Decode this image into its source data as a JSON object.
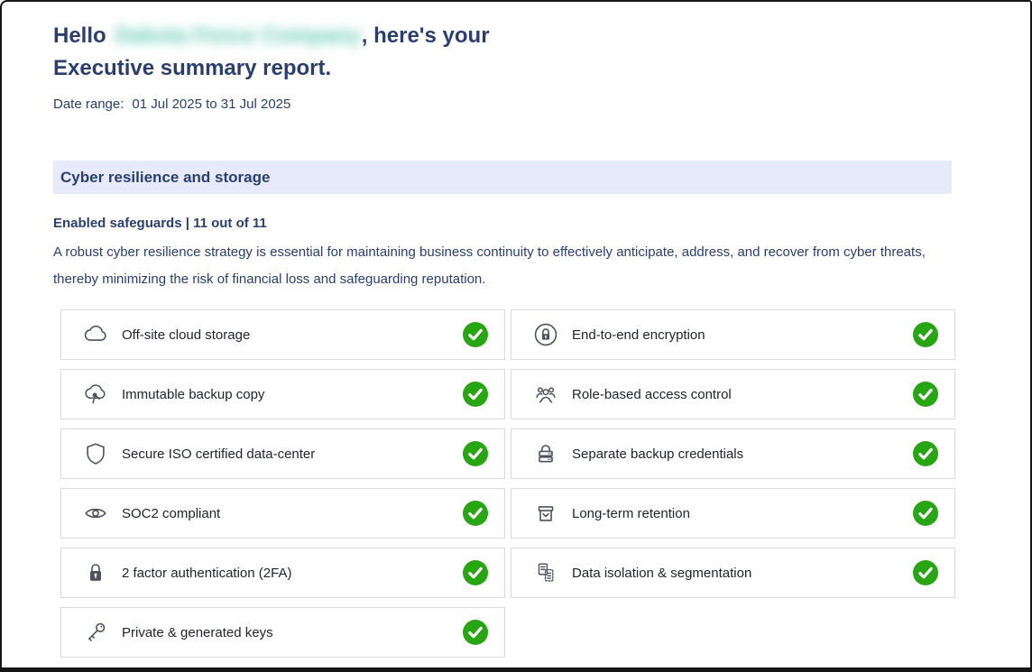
{
  "header": {
    "greeting_prefix": "Hello",
    "company_name_blurred": "Dakota Fence Company",
    "greeting_suffix": ", here's your",
    "title_line2": "Executive summary report.",
    "date_range_label": "Date range:",
    "date_range_value": "01 Jul 2025 to 31 Jul 2025"
  },
  "section": {
    "title": "Cyber resilience and storage",
    "safeguards_summary": "Enabled safeguards | 11 out of 11",
    "description": "A robust cyber resilience strategy is essential for maintaining business continuity to effectively anticipate, address, and recover from cyber threats, thereby minimizing the risk of financial loss and safeguarding reputation."
  },
  "safeguards": [
    {
      "label": "Off-site cloud storage",
      "icon": "cloud-icon",
      "status": "enabled"
    },
    {
      "label": "End-to-end encryption",
      "icon": "lock-circle-icon",
      "status": "enabled"
    },
    {
      "label": "Immutable backup copy",
      "icon": "cloud-pin-icon",
      "status": "enabled"
    },
    {
      "label": "Role-based access control",
      "icon": "user-group-icon",
      "status": "enabled"
    },
    {
      "label": "Secure ISO certified data-center",
      "icon": "shield-icon",
      "status": "enabled"
    },
    {
      "label": "Separate backup credentials",
      "icon": "server-lock-icon",
      "status": "enabled"
    },
    {
      "label": "SOC2 compliant",
      "icon": "eye-icon",
      "status": "enabled"
    },
    {
      "label": "Long-term retention",
      "icon": "archive-box-icon",
      "status": "enabled"
    },
    {
      "label": "2 factor authentication (2FA)",
      "icon": "padlock-icon",
      "status": "enabled"
    },
    {
      "label": "Data isolation & segmentation",
      "icon": "documents-icon",
      "status": "enabled"
    },
    {
      "label": "Private & generated keys",
      "icon": "key-icon",
      "status": "enabled"
    }
  ],
  "colors": {
    "heading_navy": "#2a3f6e",
    "section_banner_bg": "#e7eafb",
    "check_green": "#28a513",
    "company_blur_teal": "#5fc9ae",
    "card_border": "#d9d9d9",
    "icon_gray": "#4d525e"
  }
}
